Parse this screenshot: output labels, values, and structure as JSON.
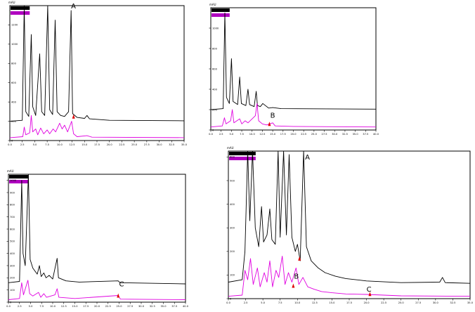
{
  "figure": {
    "annotations_note": ""
  },
  "chart_data": [
    {
      "type": "line",
      "panel": "top-left",
      "unit_label": "mAU",
      "xlim": [
        0,
        35
      ],
      "ylim": [
        0,
        1400
      ],
      "x_ticks": [
        "0.0",
        "2.5",
        "5.0",
        "7.5",
        "10.0",
        "12.5",
        "15.0",
        "17.5",
        "20.0",
        "22.5",
        "25.0",
        "27.5",
        "30.0",
        "32.5",
        "35.0"
      ],
      "y_ticks": [
        "0",
        "200",
        "400",
        "600",
        "800",
        "1000",
        "1200"
      ],
      "legend": [
        "",
        ""
      ],
      "annotations": [
        {
          "text": "A",
          "x": 12.3,
          "y": 1370
        }
      ],
      "markers": [
        {
          "x": 12.8,
          "y": 250
        }
      ],
      "series": [
        {
          "color": "#000000",
          "baseline": 200,
          "points": [
            [
              0,
              200
            ],
            [
              2.5,
              210
            ],
            [
              2.9,
              1400
            ],
            [
              3.2,
              300
            ],
            [
              3.8,
              250
            ],
            [
              4.3,
              1100
            ],
            [
              4.6,
              350
            ],
            [
              5.2,
              260
            ],
            [
              6.0,
              900
            ],
            [
              6.4,
              300
            ],
            [
              7.0,
              260
            ],
            [
              7.6,
              1400
            ],
            [
              8.0,
              320
            ],
            [
              8.6,
              270
            ],
            [
              9.1,
              1250
            ],
            [
              9.5,
              300
            ],
            [
              10.2,
              260
            ],
            [
              11.0,
              250
            ],
            [
              11.8,
              300
            ],
            [
              12.3,
              1350
            ],
            [
              12.6,
              280
            ],
            [
              13.5,
              240
            ],
            [
              15.0,
              230
            ],
            [
              15.5,
              260
            ],
            [
              16.0,
              225
            ],
            [
              20.0,
              210
            ],
            [
              35.0,
              205
            ]
          ]
        },
        {
          "color": "#e000e0",
          "baseline": 30,
          "points": [
            [
              0,
              30
            ],
            [
              2.6,
              40
            ],
            [
              2.9,
              140
            ],
            [
              3.2,
              60
            ],
            [
              4.0,
              80
            ],
            [
              4.3,
              260
            ],
            [
              4.6,
              90
            ],
            [
              5.2,
              120
            ],
            [
              5.6,
              60
            ],
            [
              6.2,
              130
            ],
            [
              6.8,
              70
            ],
            [
              7.5,
              110
            ],
            [
              8.0,
              70
            ],
            [
              8.7,
              120
            ],
            [
              9.2,
              90
            ],
            [
              10.0,
              180
            ],
            [
              10.5,
              120
            ],
            [
              11.0,
              160
            ],
            [
              11.6,
              90
            ],
            [
              12.4,
              200
            ],
            [
              12.8,
              70
            ],
            [
              13.5,
              40
            ],
            [
              15.5,
              50
            ],
            [
              16.5,
              35
            ],
            [
              35.0,
              30
            ]
          ]
        }
      ]
    },
    {
      "type": "line",
      "panel": "top-right",
      "unit_label": "mAU",
      "xlim": [
        0,
        40
      ],
      "ylim": [
        0,
        1200
      ],
      "x_ticks": [
        "0.0",
        "2.5",
        "5.0",
        "7.5",
        "10.0",
        "12.5",
        "15.0",
        "17.5",
        "20.0",
        "22.5",
        "25.0",
        "27.5",
        "30.0",
        "32.5",
        "35.0",
        "37.5",
        "40.0"
      ],
      "y_ticks": [
        "0",
        "200",
        "400",
        "600",
        "800",
        "1000"
      ],
      "legend": [
        "",
        ""
      ],
      "annotations": [
        {
          "text": "B",
          "x": 14.4,
          "y": 120
        }
      ],
      "markers": [
        {
          "x": 14.2,
          "y": 60
        }
      ],
      "series": [
        {
          "color": "#000000",
          "baseline": 200,
          "points": [
            [
              0,
              200
            ],
            [
              3.0,
              210
            ],
            [
              3.4,
              1150
            ],
            [
              3.8,
              320
            ],
            [
              4.5,
              260
            ],
            [
              5.0,
              700
            ],
            [
              5.4,
              280
            ],
            [
              6.5,
              250
            ],
            [
              7.0,
              520
            ],
            [
              7.4,
              260
            ],
            [
              8.5,
              240
            ],
            [
              9.0,
              400
            ],
            [
              9.4,
              250
            ],
            [
              10.5,
              230
            ],
            [
              11.0,
              380
            ],
            [
              11.3,
              240
            ],
            [
              12.0,
              230
            ],
            [
              12.6,
              260
            ],
            [
              14.0,
              215
            ],
            [
              15.0,
              220
            ],
            [
              17.0,
              210
            ],
            [
              40.0,
              205
            ]
          ]
        },
        {
          "color": "#e000e0",
          "baseline": 30,
          "points": [
            [
              0,
              30
            ],
            [
              2.8,
              40
            ],
            [
              3.3,
              120
            ],
            [
              3.7,
              60
            ],
            [
              4.8,
              90
            ],
            [
              5.2,
              200
            ],
            [
              5.6,
              70
            ],
            [
              7.0,
              110
            ],
            [
              7.5,
              60
            ],
            [
              8.3,
              90
            ],
            [
              9.0,
              70
            ],
            [
              10.8,
              140
            ],
            [
              11.2,
              260
            ],
            [
              11.6,
              90
            ],
            [
              12.5,
              60
            ],
            [
              13.5,
              50
            ],
            [
              15.0,
              70
            ],
            [
              15.6,
              40
            ],
            [
              20.0,
              35
            ],
            [
              40.0,
              30
            ]
          ]
        }
      ]
    },
    {
      "type": "line",
      "panel": "bottom-left",
      "unit_label": "mAU",
      "xlim": [
        0,
        40
      ],
      "ylim": [
        0,
        1050
      ],
      "x_ticks": [
        "0.0",
        "2.5",
        "5.0",
        "7.5",
        "10.0",
        "12.5",
        "15.0",
        "17.5",
        "20.0",
        "22.5",
        "25.0",
        "27.5",
        "30.0",
        "32.5",
        "35.0",
        "37.5",
        "40.0"
      ],
      "y_ticks": [
        "0",
        "100",
        "200",
        "300",
        "400",
        "500",
        "600",
        "700",
        "800",
        "900",
        "1000"
      ],
      "legend": [
        "",
        ""
      ],
      "annotations": [
        {
          "text": "C",
          "x": 25.0,
          "y": 130
        }
      ],
      "markers": [
        {
          "x": 24.8,
          "y": 55
        }
      ],
      "series": [
        {
          "color": "#000000",
          "baseline": 150,
          "points": [
            [
              0,
              160
            ],
            [
              2.5,
              170
            ],
            [
              3.0,
              1000
            ],
            [
              3.3,
              400
            ],
            [
              3.8,
              300
            ],
            [
              4.5,
              1050
            ],
            [
              4.9,
              350
            ],
            [
              5.5,
              280
            ],
            [
              6.5,
              230
            ],
            [
              7.0,
              300
            ],
            [
              7.4,
              210
            ],
            [
              8.0,
              240
            ],
            [
              8.5,
              200
            ],
            [
              9.2,
              220
            ],
            [
              10.0,
              190
            ],
            [
              11.0,
              360
            ],
            [
              11.3,
              200
            ],
            [
              13.0,
              175
            ],
            [
              16.0,
              165
            ],
            [
              24.8,
              175
            ],
            [
              25.2,
              160
            ],
            [
              40.0,
              150
            ]
          ]
        },
        {
          "color": "#e000e0",
          "baseline": 20,
          "points": [
            [
              0,
              20
            ],
            [
              2.5,
              30
            ],
            [
              3.0,
              160
            ],
            [
              3.4,
              60
            ],
            [
              4.4,
              180
            ],
            [
              4.8,
              70
            ],
            [
              5.5,
              50
            ],
            [
              6.8,
              80
            ],
            [
              7.3,
              40
            ],
            [
              8.0,
              70
            ],
            [
              8.6,
              40
            ],
            [
              10.5,
              60
            ],
            [
              11.0,
              110
            ],
            [
              11.4,
              40
            ],
            [
              15.0,
              30
            ],
            [
              24.8,
              55
            ],
            [
              25.3,
              25
            ],
            [
              40.0,
              20
            ]
          ]
        }
      ]
    },
    {
      "type": "line",
      "panel": "bottom-right",
      "unit_label": "mAU",
      "xlim": [
        0,
        35
      ],
      "ylim": [
        0,
        625
      ],
      "x_ticks": [
        "0.0",
        "2.5",
        "5.0",
        "7.5",
        "10.0",
        "12.5",
        "15.0",
        "17.5",
        "20.0",
        "22.5",
        "25.0",
        "27.5",
        "30.0",
        "32.5",
        "35.0"
      ],
      "y_ticks": [
        "0",
        "100",
        "200",
        "300",
        "400",
        "500",
        "600"
      ],
      "legend": [
        "",
        ""
      ],
      "annotations": [
        {
          "text": "A",
          "x": 11.1,
          "y": 590
        },
        {
          "text": "B",
          "x": 9.5,
          "y": 85
        },
        {
          "text": "C",
          "x": 20.0,
          "y": 30
        }
      ],
      "markers": [
        {
          "x": 10.3,
          "y": 170
        },
        {
          "x": 9.4,
          "y": 55
        },
        {
          "x": 20.5,
          "y": 20
        }
      ],
      "series": [
        {
          "color": "#000000",
          "baseline": 60,
          "points": [
            [
              0,
              70
            ],
            [
              2.0,
              80
            ],
            [
              2.4,
              200
            ],
            [
              2.8,
              625
            ],
            [
              3.1,
              330
            ],
            [
              3.5,
              625
            ],
            [
              3.9,
              300
            ],
            [
              4.4,
              220
            ],
            [
              4.8,
              390
            ],
            [
              5.1,
              240
            ],
            [
              5.6,
              270
            ],
            [
              6.0,
              380
            ],
            [
              6.3,
              250
            ],
            [
              6.8,
              230
            ],
            [
              7.2,
              625
            ],
            [
              7.5,
              260
            ],
            [
              8.0,
              625
            ],
            [
              8.4,
              270
            ],
            [
              8.8,
              610
            ],
            [
              9.2,
              260
            ],
            [
              9.7,
              200
            ],
            [
              10.0,
              230
            ],
            [
              10.4,
              160
            ],
            [
              10.9,
              625
            ],
            [
              11.3,
              220
            ],
            [
              12.0,
              160
            ],
            [
              13.0,
              130
            ],
            [
              14.0,
              110
            ],
            [
              15.5,
              95
            ],
            [
              17.0,
              85
            ],
            [
              20.0,
              75
            ],
            [
              25.0,
              68
            ],
            [
              30.6,
              70
            ],
            [
              31.0,
              90
            ],
            [
              31.4,
              68
            ],
            [
              35.0,
              65
            ]
          ]
        },
        {
          "color": "#e000e0",
          "baseline": 10,
          "points": [
            [
              0,
              10
            ],
            [
              2.0,
              15
            ],
            [
              2.4,
              120
            ],
            [
              2.8,
              80
            ],
            [
              3.2,
              170
            ],
            [
              3.6,
              60
            ],
            [
              4.2,
              130
            ],
            [
              4.6,
              50
            ],
            [
              5.2,
              110
            ],
            [
              5.6,
              70
            ],
            [
              6.0,
              160
            ],
            [
              6.4,
              50
            ],
            [
              6.9,
              120
            ],
            [
              7.3,
              90
            ],
            [
              7.8,
              180
            ],
            [
              8.2,
              60
            ],
            [
              8.7,
              110
            ],
            [
              9.2,
              70
            ],
            [
              9.8,
              130
            ],
            [
              10.2,
              60
            ],
            [
              10.8,
              90
            ],
            [
              11.5,
              50
            ],
            [
              12.4,
              40
            ],
            [
              13.5,
              30
            ],
            [
              15.0,
              25
            ],
            [
              17.0,
              20
            ],
            [
              20.0,
              18
            ],
            [
              25.0,
              12
            ],
            [
              35.0,
              10
            ]
          ]
        }
      ]
    }
  ]
}
